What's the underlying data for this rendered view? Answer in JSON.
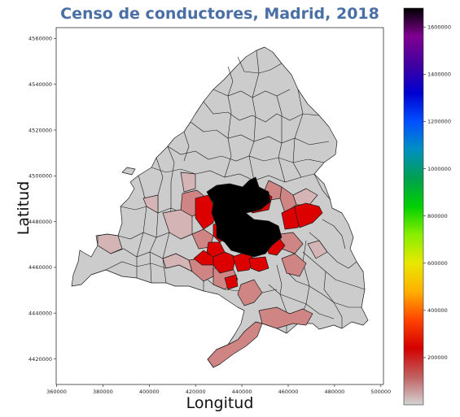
{
  "chart_data": {
    "type": "choropleth",
    "title": "Censo de conductores, Madrid, 2018",
    "xlabel": "Longitud",
    "ylabel": "Latitud",
    "xlim": [
      360000,
      500000
    ],
    "ylim": [
      4410000,
      4565000
    ],
    "xticks": [
      360000,
      380000,
      400000,
      420000,
      440000,
      460000,
      480000,
      500000
    ],
    "yticks": [
      4420000,
      4440000,
      4460000,
      4480000,
      4500000,
      4520000,
      4540000,
      4560000
    ],
    "colorbar": {
      "min": 0,
      "max": 1680000,
      "ticks": [
        200000,
        400000,
        600000,
        800000,
        1000000,
        1200000,
        1400000,
        1600000
      ],
      "colors": [
        "#d4d4d4",
        "#c06060",
        "#d40000",
        "#ff4400",
        "#ffb000",
        "#e8e800",
        "#88ee00",
        "#00d000",
        "#00a050",
        "#0090c0",
        "#0050ff",
        "#0000d0",
        "#4000a0",
        "#800090",
        "#000000"
      ]
    },
    "colors": {
      "low": "#cccccc",
      "light_pink": "#d4b4b4",
      "pink": "#d08585",
      "red": "#dd0000",
      "highest": "#000000"
    }
  }
}
